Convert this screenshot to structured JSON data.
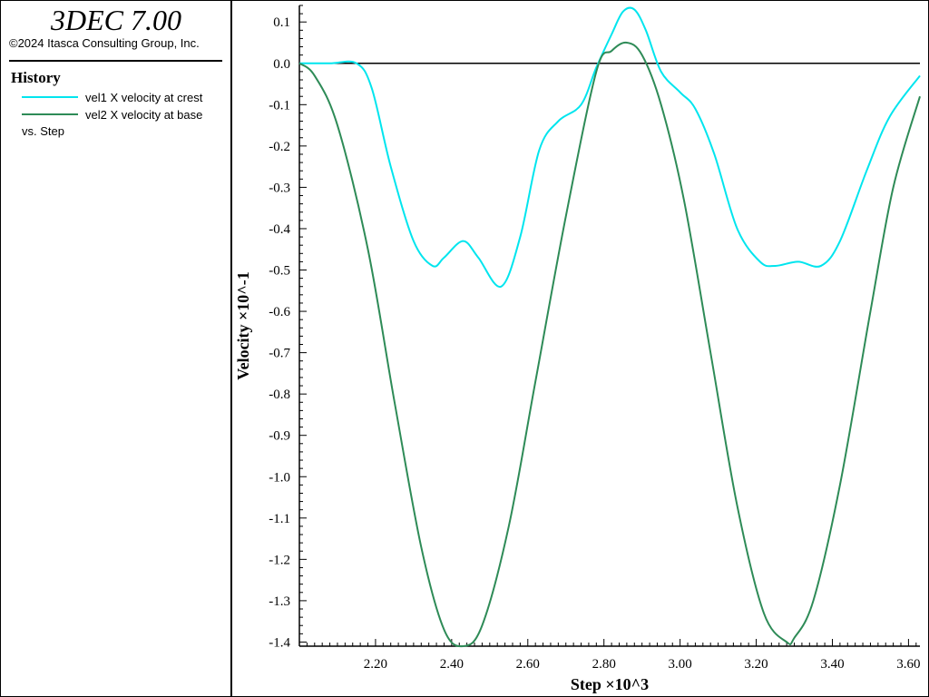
{
  "app": {
    "title": "3DEC 7.00",
    "copyright": "©2024 Itasca Consulting Group, Inc."
  },
  "legend": {
    "heading": "History",
    "items": [
      {
        "label": "vel1 X velocity at crest",
        "color": "#00e5ee"
      },
      {
        "label": "vel2 X velocity at base",
        "color": "#2e8b57"
      }
    ],
    "xaxis_label": "vs. Step"
  },
  "chart_data": {
    "type": "line",
    "xlabel": "Step ×10^3",
    "ylabel": "Velocity ×10^-1",
    "xlim": [
      2.0,
      3.63
    ],
    "ylim": [
      -1.41,
      0.14
    ],
    "x_ticks": [
      "2.20",
      "2.40",
      "2.60",
      "2.80",
      "3.00",
      "3.20",
      "3.40",
      "3.60"
    ],
    "y_ticks": [
      "0.1",
      "0.0",
      "-0.1",
      "-0.2",
      "-0.3",
      "-0.4",
      "-0.5",
      "-0.6",
      "-0.7",
      "-0.8",
      "-0.9",
      "-1.0",
      "-1.1",
      "-1.2",
      "-1.3",
      "-1.4"
    ],
    "series": [
      {
        "name": "vel1 X velocity at crest",
        "color": "#00e5ee",
        "x": [
          2.0,
          2.08,
          2.15,
          2.19,
          2.24,
          2.3,
          2.35,
          2.38,
          2.43,
          2.47,
          2.53,
          2.58,
          2.63,
          2.68,
          2.74,
          2.78,
          2.82,
          2.85,
          2.88,
          2.91,
          2.95,
          3.0,
          3.04,
          3.09,
          3.15,
          3.21,
          3.25,
          3.31,
          3.37,
          3.42,
          3.49,
          3.55,
          3.63
        ],
        "y": [
          0.0,
          0.0,
          0.0,
          -0.06,
          -0.25,
          -0.43,
          -0.49,
          -0.47,
          -0.43,
          -0.47,
          -0.54,
          -0.42,
          -0.21,
          -0.14,
          -0.1,
          -0.01,
          0.07,
          0.125,
          0.13,
          0.08,
          -0.02,
          -0.07,
          -0.11,
          -0.22,
          -0.4,
          -0.48,
          -0.49,
          -0.48,
          -0.49,
          -0.43,
          -0.26,
          -0.13,
          -0.03
        ]
      },
      {
        "name": "vel2 X velocity at base",
        "color": "#2e8b57",
        "x": [
          2.0,
          2.04,
          2.1,
          2.18,
          2.25,
          2.32,
          2.38,
          2.43,
          2.48,
          2.55,
          2.62,
          2.7,
          2.78,
          2.82,
          2.86,
          2.9,
          2.95,
          3.01,
          3.08,
          3.15,
          3.22,
          3.28,
          3.3,
          3.35,
          3.42,
          3.5,
          3.56,
          3.63
        ],
        "y": [
          0.0,
          -0.03,
          -0.15,
          -0.45,
          -0.82,
          -1.17,
          -1.37,
          -1.41,
          -1.36,
          -1.12,
          -0.77,
          -0.37,
          -0.02,
          0.03,
          0.05,
          0.02,
          -0.1,
          -0.33,
          -0.7,
          -1.07,
          -1.33,
          -1.4,
          -1.39,
          -1.3,
          -1.02,
          -0.6,
          -0.3,
          -0.08
        ]
      }
    ]
  }
}
